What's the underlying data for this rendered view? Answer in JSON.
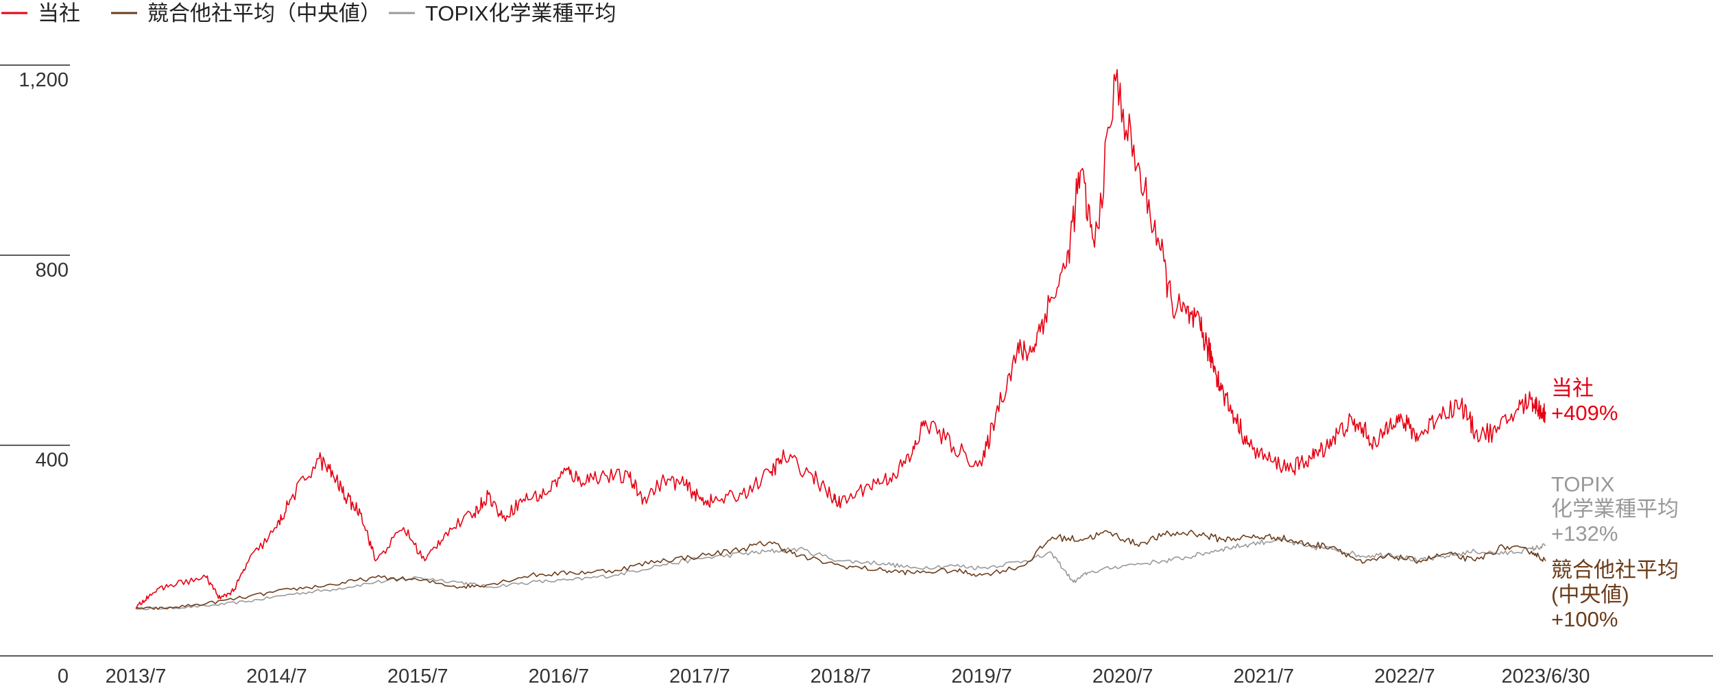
{
  "chart_data": {
    "type": "line",
    "title": "",
    "xlabel": "",
    "ylabel": "",
    "ylim": [
      0,
      1200
    ],
    "y_ticks": [
      "0",
      "400",
      "800",
      "1,200"
    ],
    "y_tick_values": [
      0,
      400,
      800,
      1200
    ],
    "x_tick_labels": [
      "2013/7",
      "2014/7",
      "2015/7",
      "2016/7",
      "2017/7",
      "2018/7",
      "2019/7",
      "2020/7",
      "2021/7",
      "2022/7",
      "2023/6/30"
    ],
    "x_tick_values": [
      2013.5,
      2014.5,
      2015.5,
      2016.5,
      2017.5,
      2018.5,
      2019.5,
      2020.5,
      2021.5,
      2022.5,
      2023.5
    ],
    "xlim": [
      2013.5,
      2023.5
    ],
    "legend_position": "top-left",
    "series": [
      {
        "name": "当社",
        "color": "#e60012",
        "end_label": [
          "当社",
          "+409%"
        ],
        "x": [
          2013.5,
          2013.6,
          2013.75,
          2014.0,
          2014.1,
          2014.2,
          2014.3,
          2014.5,
          2014.6,
          2014.8,
          2014.9,
          2015.0,
          2015.1,
          2015.2,
          2015.4,
          2015.55,
          2015.7,
          2015.9,
          2016.0,
          2016.1,
          2016.25,
          2016.4,
          2016.55,
          2016.65,
          2016.8,
          2017.0,
          2017.1,
          2017.25,
          2017.4,
          2017.5,
          2017.6,
          2017.8,
          2018.0,
          2018.1,
          2018.3,
          2018.45,
          2018.5,
          2018.7,
          2018.85,
          2019.0,
          2019.1,
          2019.3,
          2019.5,
          2019.6,
          2019.75,
          2019.85,
          2019.95,
          2020.1,
          2020.2,
          2020.3,
          2020.45,
          2020.6,
          2020.75,
          2020.85,
          2020.95,
          2021.05,
          2021.1,
          2021.15,
          2021.2,
          2021.3,
          2021.4,
          2021.55,
          2021.7,
          2021.8,
          2021.9,
          2022.0,
          2022.1,
          2022.2,
          2022.3,
          2022.4,
          2022.5,
          2022.6,
          2022.75,
          2022.9,
          2023.0,
          2023.15,
          2023.3,
          2023.4,
          2023.45,
          2023.5
        ],
        "y": [
          100,
          130,
          150,
          165,
          120,
          140,
          200,
          270,
          330,
          415,
          380,
          330,
          300,
          200,
          270,
          200,
          260,
          300,
          340,
          290,
          330,
          340,
          390,
          370,
          380,
          375,
          330,
          370,
          360,
          330,
          325,
          340,
          385,
          420,
          380,
          330,
          320,
          360,
          375,
          420,
          495,
          440,
          400,
          510,
          640,
          640,
          720,
          820,
          1020,
          860,
          1210,
          1030,
          880,
          740,
          720,
          690,
          650,
          610,
          560,
          500,
          440,
          410,
          395,
          410,
          430,
          460,
          490,
          480,
          440,
          500,
          490,
          460,
          510,
          530,
          470,
          470,
          520,
          540,
          520,
          509
        ]
      },
      {
        "name": "競合他社平均（中央値）",
        "color": "#6b3c1a",
        "end_label": [
          "競合他社平均",
          "(中央値)",
          "+100%"
        ],
        "x": [
          2013.5,
          2013.7,
          2014.0,
          2014.3,
          2014.6,
          2014.9,
          2015.2,
          2015.5,
          2015.8,
          2016.0,
          2016.3,
          2016.6,
          2016.9,
          2017.2,
          2017.5,
          2017.8,
          2018.0,
          2018.2,
          2018.5,
          2018.8,
          2019.0,
          2019.3,
          2019.5,
          2019.8,
          2020.0,
          2020.2,
          2020.4,
          2020.6,
          2020.8,
          2021.0,
          2021.2,
          2021.4,
          2021.6,
          2021.8,
          2022.0,
          2022.2,
          2022.4,
          2022.6,
          2022.8,
          2023.0,
          2023.2,
          2023.4,
          2023.5
        ],
        "y": [
          100,
          100,
          110,
          125,
          140,
          150,
          165,
          160,
          145,
          150,
          170,
          175,
          180,
          200,
          210,
          225,
          240,
          210,
          190,
          180,
          175,
          180,
          170,
          190,
          250,
          245,
          260,
          235,
          255,
          260,
          245,
          250,
          250,
          235,
          230,
          195,
          210,
          200,
          215,
          200,
          230,
          220,
          200
        ]
      },
      {
        "name": "TOPIX化学業種平均",
        "color": "#999999",
        "end_label": [
          "TOPIX",
          "化学業種平均",
          "+132%"
        ],
        "x": [
          2013.5,
          2013.7,
          2014.0,
          2014.3,
          2014.6,
          2014.9,
          2015.2,
          2015.5,
          2015.8,
          2016.0,
          2016.3,
          2016.6,
          2016.9,
          2017.2,
          2017.5,
          2017.8,
          2018.0,
          2018.2,
          2018.5,
          2018.8,
          2019.0,
          2019.3,
          2019.5,
          2019.8,
          2020.0,
          2020.15,
          2020.25,
          2020.5,
          2020.8,
          2021.0,
          2021.2,
          2021.4,
          2021.6,
          2021.8,
          2022.0,
          2022.2,
          2022.4,
          2022.6,
          2022.8,
          2023.0,
          2023.2,
          2023.4,
          2023.5
        ],
        "y": [
          100,
          100,
          105,
          115,
          130,
          140,
          155,
          165,
          155,
          145,
          155,
          160,
          170,
          190,
          205,
          215,
          220,
          225,
          200,
          195,
          185,
          190,
          185,
          200,
          215,
          155,
          175,
          190,
          200,
          210,
          225,
          235,
          245,
          230,
          225,
          210,
          215,
          200,
          210,
          220,
          215,
          225,
          232
        ]
      }
    ]
  }
}
